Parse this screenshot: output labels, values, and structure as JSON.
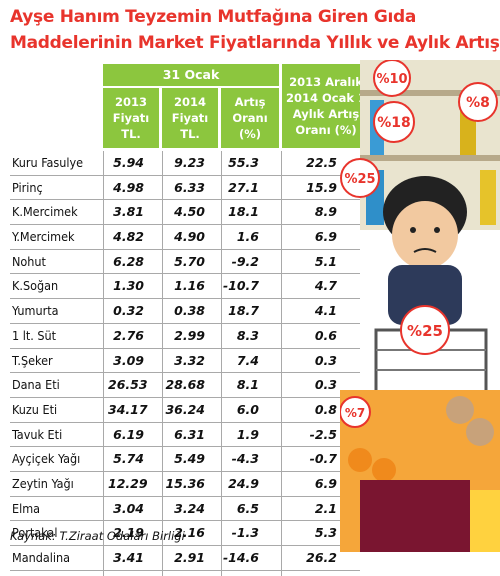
{
  "title_lines": [
    "Ayşe Hanım Teyzemin Mutfağına Giren Gıda",
    "Maddelerinin Market Fiyatlarında Yıllık ve Aylık Artış"
  ],
  "header": {
    "group_label": "31 Ocak",
    "col_2013": "2013 Fiyatı TL.",
    "col_2014": "2014 Fiyatı TL.",
    "col_artis": "Artış Oranı (%)",
    "col_monthly": "2013 Aralık 2014 Ocak 1 Aylık Artış Oranı (%)"
  },
  "source": "Kaynak: T.Ziraat Odaları Birliği",
  "badges": [
    "%10",
    "%18",
    "%8",
    "%25",
    "%25",
    "%7"
  ],
  "colors": {
    "title": "#e8342c",
    "header_bg": "#8cc63e",
    "grid": "#a9a9a9"
  },
  "chart_data": {
    "type": "table",
    "title": "Ayşe Hanım Teyzemin Mutfağına Giren Gıda Maddelerinin Market Fiyatlarında Yıllık ve Aylık Artış",
    "columns": [
      "2013 Fiyatı TL.",
      "2014 Fiyatı TL.",
      "Artış Oranı (%)",
      "2013 Aralık 2014 Ocak 1 Aylık Artış Oranı (%)"
    ],
    "rows": [
      {
        "item": "Kuru Fasulye",
        "p2013": "5.94",
        "p2014": "9.23",
        "yearly": "55.3",
        "monthly": "22.5"
      },
      {
        "item": "Pirinç",
        "p2013": "4.98",
        "p2014": "6.33",
        "yearly": "27.1",
        "monthly": "15.9"
      },
      {
        "item": "K.Mercimek",
        "p2013": "3.81",
        "p2014": "4.50",
        "yearly": "18.1",
        "monthly": "8.9"
      },
      {
        "item": "Y.Mercimek",
        "p2013": "4.82",
        "p2014": "4.90",
        "yearly": "1.6",
        "monthly": "6.9"
      },
      {
        "item": "Nohut",
        "p2013": "6.28",
        "p2014": "5.70",
        "yearly": "-9.2",
        "monthly": "5.1"
      },
      {
        "item": "K.Soğan",
        "p2013": "1.30",
        "p2014": "1.16",
        "yearly": "-10.7",
        "monthly": "4.7"
      },
      {
        "item": "Yumurta",
        "p2013": "0.32",
        "p2014": "0.38",
        "yearly": "18.7",
        "monthly": "4.1"
      },
      {
        "item": "1 lt. Süt",
        "p2013": "2.76",
        "p2014": "2.99",
        "yearly": "8.3",
        "monthly": "0.6"
      },
      {
        "item": "T.Şeker",
        "p2013": "3.09",
        "p2014": "3.32",
        "yearly": "7.4",
        "monthly": "0.3"
      },
      {
        "item": "Dana Eti",
        "p2013": "26.53",
        "p2014": "28.68",
        "yearly": "8.1",
        "monthly": "0.3"
      },
      {
        "item": "Kuzu Eti",
        "p2013": "34.17",
        "p2014": "36.24",
        "yearly": "6.0",
        "monthly": "0.8"
      },
      {
        "item": "Tavuk Eti",
        "p2013": "6.19",
        "p2014": "6.31",
        "yearly": "1.9",
        "monthly": "-2.5"
      },
      {
        "item": "Ayçiçek Yağı",
        "p2013": "5.74",
        "p2014": "5.49",
        "yearly": "-4.3",
        "monthly": "-0.7"
      },
      {
        "item": "Zeytin Yağı",
        "p2013": "12.29",
        "p2014": "15.36",
        "yearly": "24.9",
        "monthly": "6.9"
      },
      {
        "item": "Elma",
        "p2013": "3.04",
        "p2014": "3.24",
        "yearly": "6.5",
        "monthly": "2.1"
      },
      {
        "item": "Portakal",
        "p2013": "2.19",
        "p2014": "2.16",
        "yearly": "-1.3",
        "monthly": "5.3"
      },
      {
        "item": "Mandalina",
        "p2013": "3.41",
        "p2014": "2.91",
        "yearly": "-14.6",
        "monthly": "26.2"
      }
    ]
  }
}
